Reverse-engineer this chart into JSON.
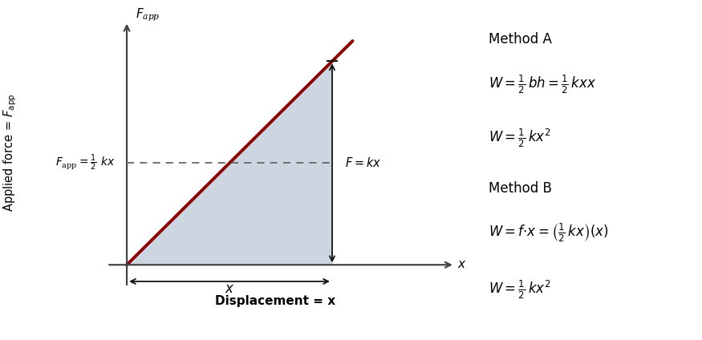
{
  "bg_color": "#ffffff",
  "line_color": "#8B0000",
  "fill_color": "#cdd5e0",
  "axis_color": "#444444",
  "dashed_color": "#666666",
  "arrow_color": "#111111",
  "xp": 0.72,
  "yp_half": 0.46,
  "xlabel": "Displacement = x",
  "ylabel": "Applied force = $F_\\mathregular{app}$",
  "x_axis_label": "$x$",
  "y_axis_label": "$F_\\mathregular{app}$",
  "fapp_label_parts": [
    "$F_\\mathregular{app} = $",
    "$\\frac{1}{2}$",
    "$ kx$"
  ],
  "fkx_label": "$F = kx$",
  "x_arrow_label": "$x$",
  "method_a_title": "Method A",
  "method_a_line1a": "$W = \\frac{1}{2}\\, bh = \\frac{1}{2}\\, kxx$",
  "method_a_line2": "$W = \\frac{1}{2}\\, kx^2$",
  "method_b_title": "Method B",
  "method_b_line1": "$W = f {\\cdot} x = \\left(\\frac{1}{2}\\, kx\\right)(x)$",
  "method_b_line2": "$W = \\frac{1}{2}\\, kx^2$"
}
